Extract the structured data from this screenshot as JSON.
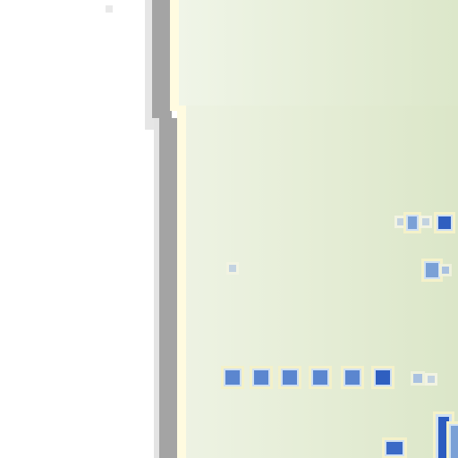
{
  "screen": {
    "description_visible": false,
    "colors": {
      "background": "#ffffff",
      "frame_grey": "#a4a4a4",
      "frame_light": "#e4e4e4",
      "frame_highlight": "#fffbe0",
      "panel_green": "#e5edd6",
      "glyph_blue": "#5b86cf",
      "glyph_dark_blue": "#2f5fc0"
    }
  },
  "panel": {
    "text_rows": [
      {
        "glyph_count": 4
      },
      {
        "glyph_count": 2
      },
      {
        "glyph_count": 8
      },
      {
        "glyph_count": 3
      }
    ]
  }
}
